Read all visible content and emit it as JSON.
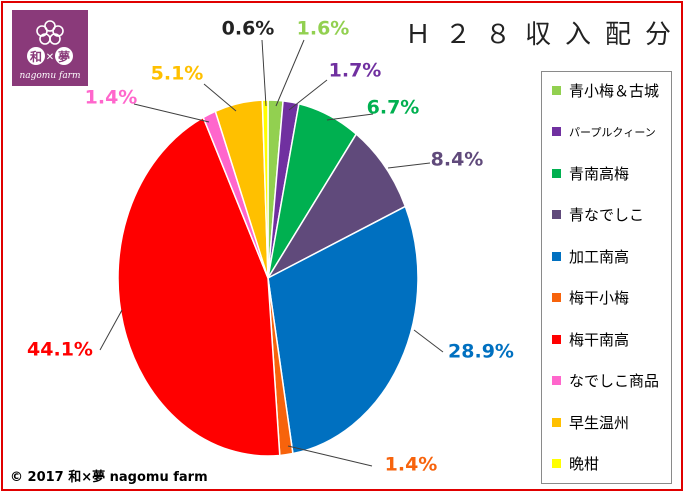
{
  "logo": {
    "text": "nagomu farm",
    "chars": [
      "和",
      "夢"
    ]
  },
  "title": "Ｈ２８収入配分",
  "copyright": "© 2017 和×夢 nagomu farm",
  "chart_data": {
    "type": "pie",
    "title": "Ｈ２８収入配分",
    "legend_position": "right",
    "slices": [
      {
        "label": "青小梅＆古城",
        "value": 1.6,
        "display": "1.6%",
        "color": "#92d050"
      },
      {
        "label": "パープルクィーン",
        "value": 1.7,
        "display": "1.7%",
        "color": "#7030a0"
      },
      {
        "label": "青南高梅",
        "value": 6.7,
        "display": "6.7%",
        "color": "#00b050"
      },
      {
        "label": "青なでしこ",
        "value": 8.4,
        "display": "8.4%",
        "color": "#604a7b"
      },
      {
        "label": "加工南高",
        "value": 28.9,
        "display": "28.9%",
        "color": "#0070c0"
      },
      {
        "label": "梅干小梅",
        "value": 1.4,
        "display": "1.4%",
        "color": "#f7630c"
      },
      {
        "label": "梅干南高",
        "value": 44.1,
        "display": "44.1%",
        "color": "#ff0000"
      },
      {
        "label": "なでしこ商品",
        "value": 1.4,
        "display": "1.4%",
        "color": "#ff66cc"
      },
      {
        "label": "早生温州",
        "value": 5.1,
        "display": "5.1%",
        "color": "#ffc000"
      },
      {
        "label": "晩柑",
        "value": 0.6,
        "display": "0.6%",
        "color": "#ffff00"
      }
    ],
    "label_colors": [
      "#92d050",
      "#7030a0",
      "#00b050",
      "#604a7b",
      "#0070c0",
      "#f7630c",
      "#ff0000",
      "#ff66cc",
      "#ffc000",
      "#222222"
    ]
  }
}
